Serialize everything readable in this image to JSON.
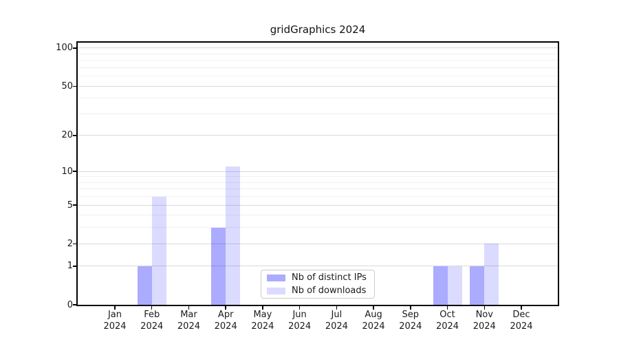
{
  "title": "gridGraphics 2024",
  "colors": {
    "bar_base": "#0000ff",
    "ips_rendered": "#ababff",
    "downloads_rendered": "#dcdcff",
    "grid_major": "#d9d9d9",
    "grid_minor": "#f0f0f0",
    "spine": "#000000",
    "text": "#1a1a1a",
    "legend_border": "#cccccc"
  },
  "legend": {
    "items": [
      {
        "label": "Nb of distinct IPs"
      },
      {
        "label": "Nb of downloads"
      }
    ]
  },
  "chart_data": {
    "type": "bar",
    "title": "gridGraphics 2024",
    "months": [
      "Jan",
      "Feb",
      "Mar",
      "Apr",
      "May",
      "Jun",
      "Jul",
      "Aug",
      "Sep",
      "Oct",
      "Nov",
      "Dec"
    ],
    "year_label": "2024",
    "series": [
      {
        "name": "Nb of distinct IPs",
        "color": "#0000ff",
        "alpha": 0.33,
        "values": [
          0,
          1,
          0,
          3,
          0,
          0,
          0,
          0,
          0,
          1,
          1,
          0
        ]
      },
      {
        "name": "Nb of downloads",
        "color": "#0000ff",
        "alpha": 0.14,
        "values": [
          0,
          6,
          0,
          11,
          0,
          0,
          0,
          0,
          0,
          1,
          2,
          0
        ]
      }
    ],
    "y_scale": "log1p",
    "y_major_ticks": [
      0,
      1,
      2,
      5,
      10,
      20,
      50,
      100
    ],
    "y_minor_ticks": [
      3,
      4,
      6,
      7,
      8,
      9,
      30,
      40,
      60,
      70,
      80,
      90
    ],
    "ylim": [
      0,
      110.5
    ],
    "grid": true,
    "legend_position": "lower center"
  }
}
